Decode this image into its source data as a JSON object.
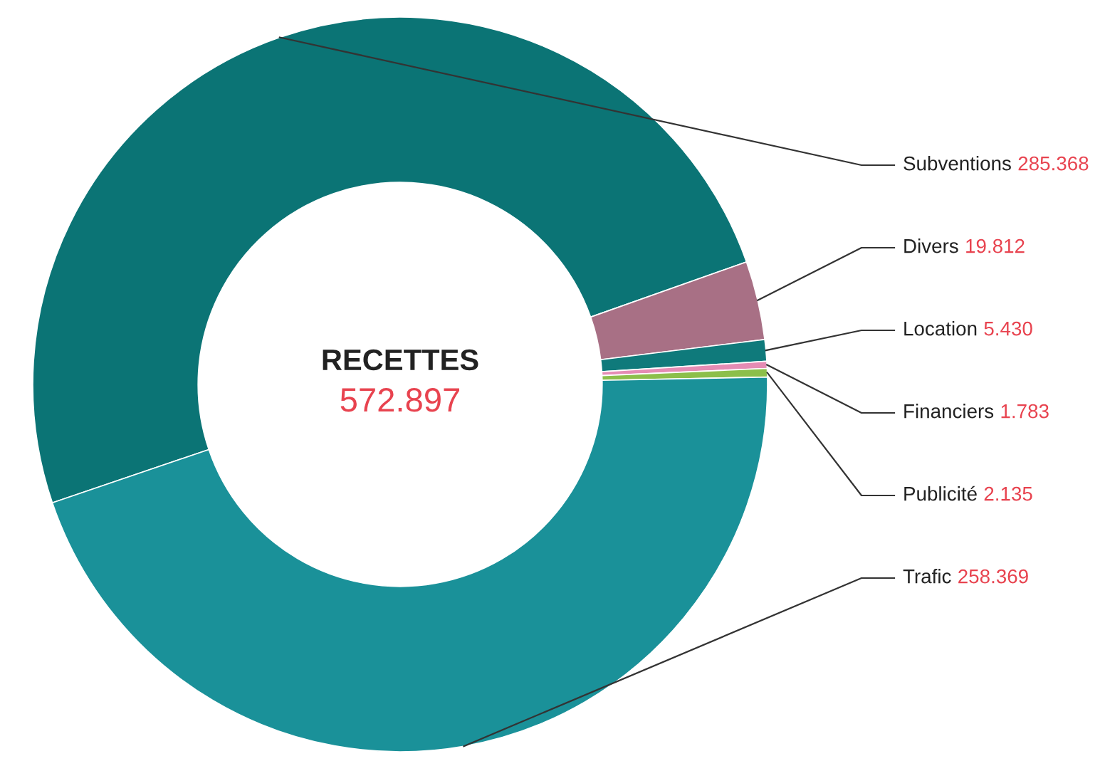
{
  "chart_data": {
    "type": "donut",
    "title": "RECETTES",
    "annotations": [
      "572.897"
    ],
    "categories": [
      "Subventions",
      "Divers",
      "Location",
      "Financiers",
      "Publicité",
      "Trafic"
    ],
    "values": [
      285.368,
      19.812,
      5.43,
      1.783,
      2.135,
      258.369
    ],
    "value_labels": [
      "285.368",
      "19.812",
      "5.430",
      "1.783",
      "2.135",
      "258.369"
    ],
    "colors": [
      "#0b7475",
      "#a87085",
      "#0f7a7b",
      "#e58cb4",
      "#8cbf4a",
      "#1a9199"
    ]
  }
}
